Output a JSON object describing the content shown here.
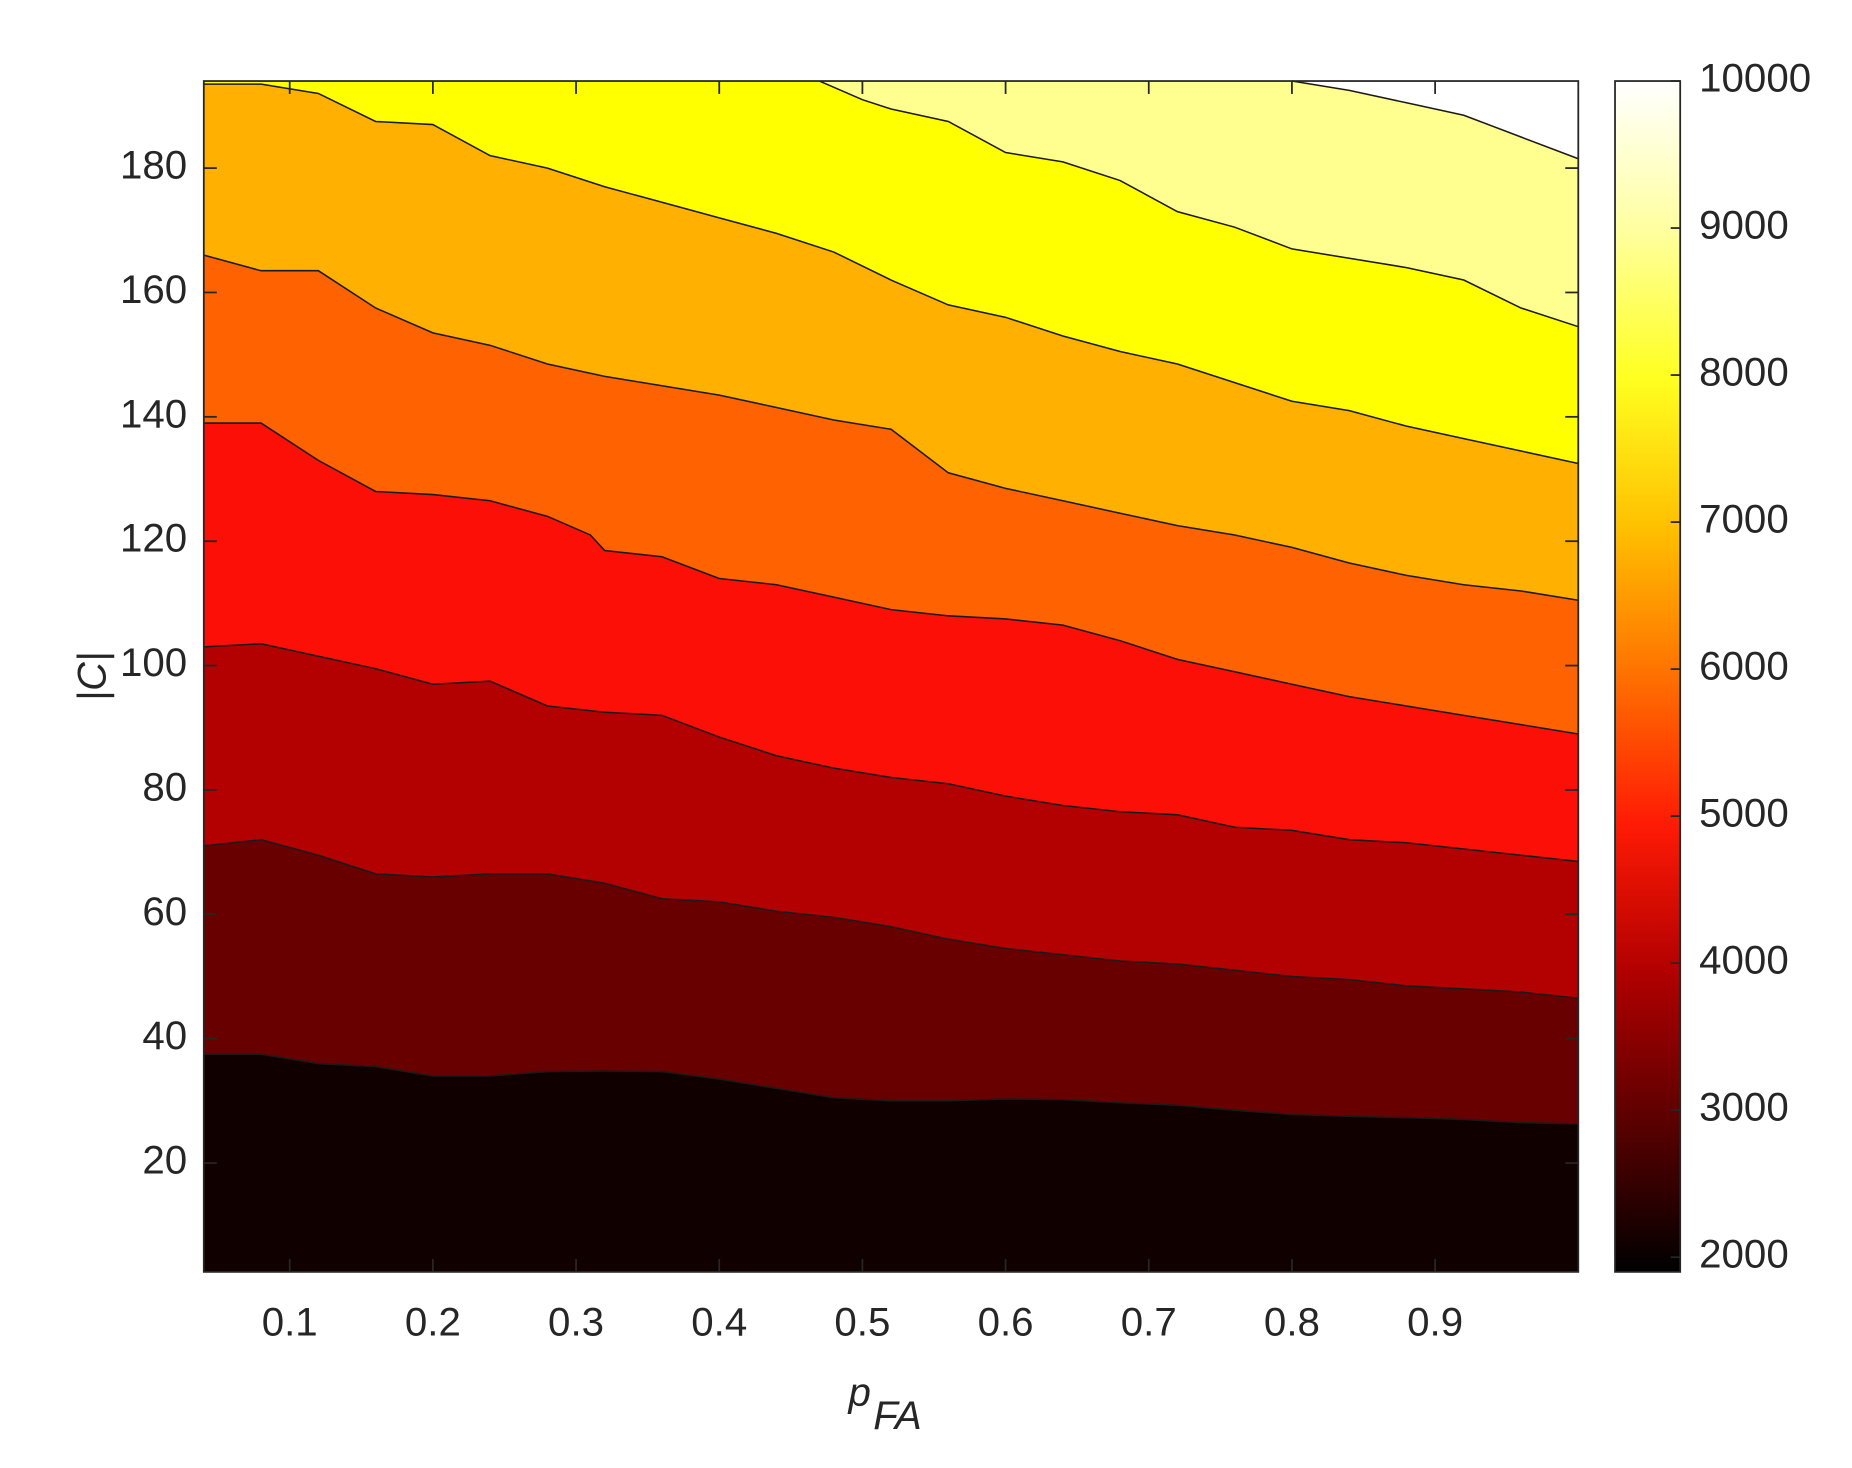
{
  "chart_data": {
    "type": "contourf",
    "xlabel": "p",
    "xlabel_sub": "FA",
    "ylabel": "|C|",
    "xlim": [
      0.04,
      1
    ],
    "ylim": [
      2.5,
      194
    ],
    "xticks": [
      0.1,
      0.2,
      0.3,
      0.4,
      0.5,
      0.6,
      0.7,
      0.8,
      0.9
    ],
    "yticks": [
      20,
      40,
      60,
      80,
      100,
      120,
      140,
      160,
      180
    ],
    "clim": [
      1900,
      10000
    ],
    "cticks": [
      2000,
      3000,
      4000,
      5000,
      6000,
      7000,
      8000,
      9000,
      10000
    ],
    "colormap": [
      "#000000",
      "#5a0000",
      "#b00000",
      "#ff1a05",
      "#ff7000",
      "#ffc000",
      "#ffff20",
      "#ffffa0",
      "#ffffff"
    ],
    "band_colors": [
      "#100000",
      "#680000",
      "#b30000",
      "#fb0f07",
      "#ff6200",
      "#ffb000",
      "#ffff00",
      "#ffff90",
      "#ffffff"
    ],
    "line_color": "#1a1a1a",
    "contours": [
      {
        "level": 3000,
        "x": [
          0.04,
          0.08,
          0.12,
          0.16,
          0.2,
          0.24,
          0.28,
          0.32,
          0.36,
          0.4,
          0.44,
          0.48,
          0.52,
          0.56,
          0.6,
          0.64,
          0.68,
          0.72,
          0.76,
          0.8,
          0.84,
          0.88,
          0.92,
          0.96,
          1
        ],
        "y": [
          37.5,
          37.5,
          36,
          35.5,
          34,
          34,
          34.7,
          34.8,
          34.7,
          33.5,
          32,
          30.5,
          30,
          30,
          30.3,
          30.2,
          29.7,
          29.3,
          28.5,
          27.8,
          27.5,
          27.3,
          27,
          26.5,
          26.3
        ]
      },
      {
        "level": 4000,
        "x": [
          0.04,
          0.08,
          0.12,
          0.16,
          0.2,
          0.24,
          0.28,
          0.32,
          0.36,
          0.4,
          0.44,
          0.48,
          0.52,
          0.56,
          0.6,
          0.64,
          0.68,
          0.72,
          0.76,
          0.8,
          0.84,
          0.88,
          0.92,
          0.96,
          1
        ],
        "y": [
          71,
          72,
          69.5,
          66.5,
          66,
          66.5,
          66.5,
          65,
          62.5,
          62,
          60.5,
          59.5,
          58,
          56,
          54.5,
          53.5,
          52.5,
          52,
          51,
          50,
          49.5,
          48.5,
          48,
          47.5,
          46.5
        ]
      },
      {
        "level": 5000,
        "x": [
          0.04,
          0.08,
          0.12,
          0.16,
          0.2,
          0.24,
          0.28,
          0.32,
          0.36,
          0.4,
          0.44,
          0.48,
          0.52,
          0.56,
          0.6,
          0.64,
          0.68,
          0.72,
          0.76,
          0.8,
          0.84,
          0.88,
          0.92,
          0.96,
          1
        ],
        "y": [
          103,
          103.5,
          101.5,
          99.5,
          97,
          97.5,
          93.5,
          92.5,
          92,
          88.5,
          85.5,
          83.5,
          82,
          81,
          79,
          77.5,
          76.5,
          76,
          74,
          73.5,
          72,
          71.5,
          70.5,
          69.5,
          68.5
        ]
      },
      {
        "level": 6000,
        "x": [
          0.04,
          0.08,
          0.12,
          0.16,
          0.2,
          0.24,
          0.28,
          0.31,
          0.32,
          0.36,
          0.4,
          0.44,
          0.48,
          0.52,
          0.56,
          0.6,
          0.64,
          0.68,
          0.72,
          0.76,
          0.8,
          0.84,
          0.88,
          0.92,
          0.96,
          1
        ],
        "y": [
          139,
          139,
          133,
          128,
          127.5,
          126.5,
          124,
          121,
          118.5,
          117.5,
          114,
          113,
          111,
          109,
          108,
          107.5,
          106.5,
          104,
          101,
          99,
          97,
          95,
          93.5,
          92,
          90.5,
          89
        ]
      },
      {
        "level": 7000,
        "x": [
          0.04,
          0.08,
          0.12,
          0.16,
          0.2,
          0.24,
          0.28,
          0.32,
          0.36,
          0.4,
          0.44,
          0.48,
          0.52,
          0.56,
          0.6,
          0.64,
          0.68,
          0.72,
          0.76,
          0.8,
          0.84,
          0.88,
          0.92,
          0.96,
          1
        ],
        "y": [
          166,
          163.5,
          163.5,
          157.5,
          153.5,
          151.5,
          148.5,
          146.5,
          145,
          143.5,
          141.5,
          139.5,
          138,
          131,
          128.5,
          126.5,
          124.5,
          122.5,
          121,
          119,
          116.5,
          114.5,
          113,
          112,
          110.5
        ]
      },
      {
        "level": 8000,
        "x": [
          0.04,
          0.08,
          0.12,
          0.16,
          0.2,
          0.24,
          0.28,
          0.32,
          0.36,
          0.4,
          0.44,
          0.48,
          0.52,
          0.56,
          0.6,
          0.64,
          0.68,
          0.72,
          0.76,
          0.8,
          0.84,
          0.88,
          0.92,
          0.96,
          1
        ],
        "y": [
          193.5,
          193.5,
          192,
          187.5,
          187,
          182,
          180,
          177,
          174.5,
          172,
          169.5,
          166.5,
          162,
          158,
          156,
          153,
          150.5,
          148.5,
          145.5,
          142.5,
          141,
          138.5,
          136.5,
          134.5,
          132.5
        ]
      },
      {
        "level": 9000,
        "x": [
          0.47,
          0.5,
          0.52,
          0.56,
          0.6,
          0.64,
          0.68,
          0.72,
          0.76,
          0.8,
          0.84,
          0.88,
          0.92,
          0.96,
          1
        ],
        "y": [
          194,
          191,
          189.5,
          187.5,
          182.5,
          181,
          178,
          173,
          170.5,
          167,
          165.5,
          164,
          162,
          157.5,
          154.5
        ]
      },
      {
        "level": 10000,
        "x": [
          0.8,
          0.84,
          0.88,
          0.92,
          0.96,
          1
        ],
        "y": [
          194,
          192.5,
          190.5,
          188.5,
          185,
          181.5
        ]
      }
    ]
  }
}
